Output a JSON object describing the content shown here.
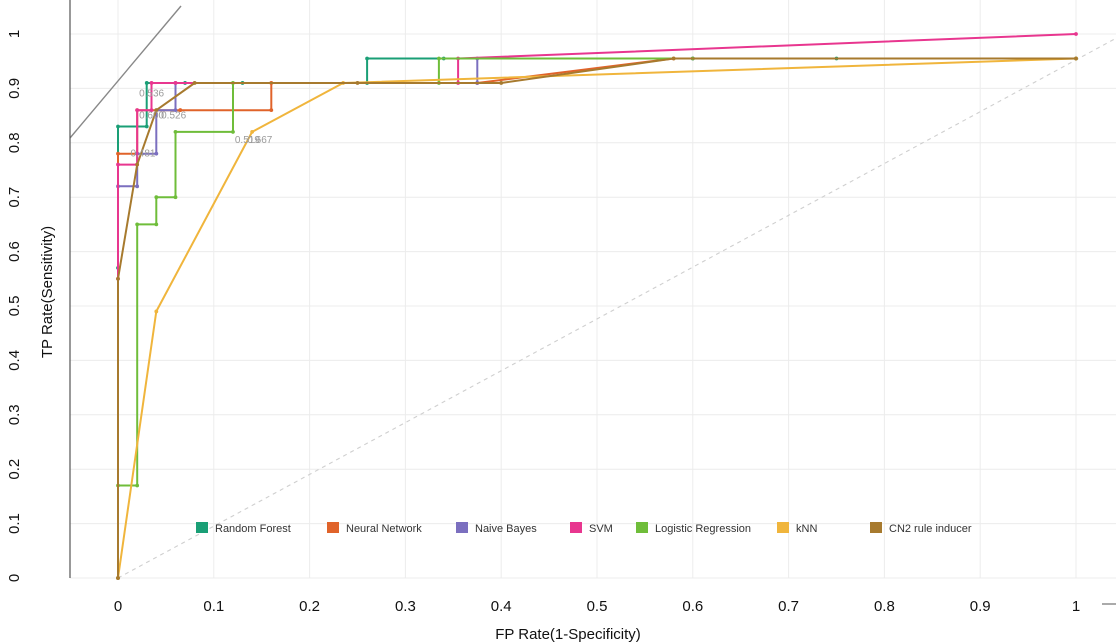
{
  "chart_data": {
    "type": "line",
    "title": "",
    "xlabel": "FP Rate(1-Specificity)",
    "ylabel": "TP Rate(Sensitivity)",
    "xlim": [
      -0.05,
      1.07
    ],
    "ylim": [
      0,
      1.0
    ],
    "x_ticks": [
      "0",
      "0.1",
      "0.2",
      "0.3",
      "0.4",
      "0.5",
      "0.6",
      "0.7",
      "0.8",
      "0.9",
      "1"
    ],
    "y_ticks": [
      "0",
      "0.1",
      "0.2",
      "0.3",
      "0.4",
      "0.5",
      "0.6",
      "0.7",
      "0.8",
      "0.9",
      "1"
    ],
    "grid": true,
    "legend_position": "bottom",
    "series": [
      {
        "name": "Random Forest",
        "color": "#1a9f76",
        "x": [
          0,
          0,
          0,
          0.03,
          0.03,
          0.07,
          0.13,
          0.26,
          0.26,
          0.34,
          0.6,
          0.75,
          1.0
        ],
        "y": [
          0,
          0.57,
          0.83,
          0.83,
          0.91,
          0.91,
          0.91,
          0.91,
          0.955,
          0.955,
          0.955,
          0.955,
          0.955
        ]
      },
      {
        "name": "Neural Network",
        "color": "#e0632a",
        "x": [
          0,
          0,
          0.02,
          0.02,
          0.065,
          0.065,
          0.16,
          0.16,
          0.375,
          0.58,
          1.0
        ],
        "y": [
          0,
          0.78,
          0.78,
          0.86,
          0.86,
          0.86,
          0.86,
          0.91,
          0.91,
          0.955,
          0.955
        ]
      },
      {
        "name": "Naive Bayes",
        "color": "#7b6fbf",
        "x": [
          0,
          0,
          0.02,
          0.02,
          0.04,
          0.04,
          0.06,
          0.06,
          0.375,
          0.375,
          0.6,
          1.0
        ],
        "y": [
          0,
          0.72,
          0.72,
          0.78,
          0.78,
          0.86,
          0.86,
          0.91,
          0.91,
          0.955,
          0.955,
          0.955
        ]
      },
      {
        "name": "SVM",
        "color": "#e8368f",
        "x": [
          0,
          0,
          0,
          0.02,
          0.02,
          0.035,
          0.035,
          0.06,
          0.355,
          0.355,
          1.0
        ],
        "y": [
          0,
          0.55,
          0.76,
          0.76,
          0.86,
          0.86,
          0.91,
          0.91,
          0.91,
          0.955,
          1.0
        ]
      },
      {
        "name": "Logistic Regression",
        "color": "#6fbd3a",
        "x": [
          0,
          0,
          0.02,
          0.02,
          0.04,
          0.04,
          0.06,
          0.06,
          0.12,
          0.12,
          0.335,
          0.335,
          0.6,
          1.0
        ],
        "y": [
          0,
          0.17,
          0.17,
          0.65,
          0.65,
          0.7,
          0.7,
          0.82,
          0.82,
          0.91,
          0.91,
          0.955,
          0.955,
          0.955
        ]
      },
      {
        "name": "kNN",
        "color": "#f0b53c",
        "x": [
          0,
          0.04,
          0.14,
          0.235,
          1.0
        ],
        "y": [
          0,
          0.49,
          0.82,
          0.91,
          0.955
        ]
      },
      {
        "name": "CN2 rule inducer",
        "color": "#a77a2e",
        "x": [
          0,
          0,
          0.02,
          0.04,
          0.08,
          0.25,
          0.4,
          0.58,
          1.0
        ],
        "y": [
          0,
          0.55,
          0.76,
          0.86,
          0.91,
          0.91,
          0.91,
          0.955,
          0.955
        ]
      }
    ],
    "threshold_labels": [
      {
        "text": "0.536",
        "x": 0.022,
        "y": 0.885
      },
      {
        "text": "0.526",
        "x": 0.045,
        "y": 0.845
      },
      {
        "text": "0.600",
        "x": 0.022,
        "y": 0.845
      },
      {
        "text": "0.481",
        "x": 0.013,
        "y": 0.775
      },
      {
        "text": "0.667",
        "x": 0.135,
        "y": 0.8
      },
      {
        "text": "0.519",
        "x": 0.122,
        "y": 0.8
      }
    ]
  }
}
